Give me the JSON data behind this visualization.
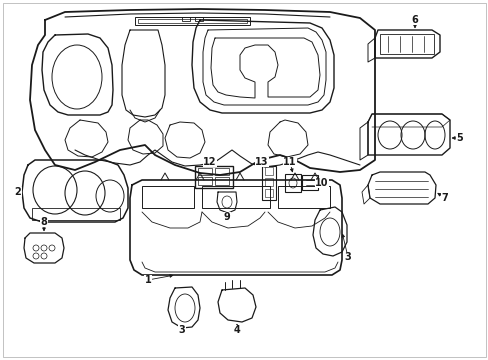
{
  "background_color": "#ffffff",
  "line_color": "#1a1a1a",
  "fig_width": 4.89,
  "fig_height": 3.6,
  "dpi": 100,
  "border_color": "#cccccc"
}
